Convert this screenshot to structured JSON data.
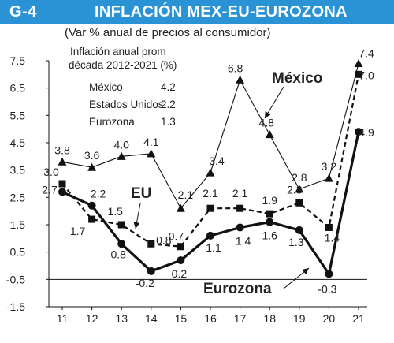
{
  "header": {
    "figure_label": "G-4",
    "title": "INFLACIÓN MEX-EU-EUROZONA"
  },
  "subtitle": "(Var % anual de precios al consumidor)",
  "note": {
    "heading_line1": "Inflación anual prom",
    "heading_line2": "década 2012-2021 (%)",
    "rows": [
      {
        "label": "México",
        "value": "4.2"
      },
      {
        "label": "Estados Unidos",
        "value": "2.2"
      },
      {
        "label": "Eurozona",
        "value": "1.3"
      }
    ]
  },
  "colors": {
    "header_bg": "#2a93d5",
    "header_text": "#ffffff",
    "lines": "#111111"
  },
  "chart_data": {
    "type": "line",
    "x": [
      "11",
      "12",
      "13",
      "14",
      "15",
      "16",
      "17",
      "18",
      "19",
      "20",
      "21"
    ],
    "ylim": [
      -1.5,
      7.5
    ],
    "yticks": [
      "7.5",
      "6.5",
      "5.5",
      "4.5",
      "3.5",
      "2.5",
      "1.5",
      "0.5",
      "-0.5",
      "-1.5"
    ],
    "grid": false,
    "series": [
      {
        "name": "México",
        "marker": "triangle",
        "style": "solid-thin",
        "values": [
          3.8,
          3.6,
          4.0,
          4.1,
          2.1,
          3.4,
          6.8,
          4.8,
          2.8,
          3.2,
          7.4
        ],
        "labels": [
          "3.8",
          "3.6",
          "4.0",
          "4.1",
          "2.1",
          "3.4",
          "6.8",
          "4.8",
          "2.8",
          "3.2",
          "7.4"
        ]
      },
      {
        "name": "EU",
        "marker": "square",
        "style": "dashed",
        "values": [
          3.0,
          1.7,
          1.5,
          0.8,
          0.7,
          2.1,
          2.1,
          1.9,
          2.3,
          1.4,
          7.0
        ],
        "labels": [
          "3.0",
          "1.7",
          "1.5",
          "0.8",
          "0.7",
          "2.1",
          "2.1",
          "1.9",
          "2.3",
          "1.4",
          "7.0"
        ]
      },
      {
        "name": "Eurozona",
        "marker": "circle",
        "style": "solid-thick",
        "values": [
          2.7,
          2.2,
          0.8,
          -0.2,
          0.2,
          1.1,
          1.4,
          1.6,
          1.3,
          -0.3,
          4.9
        ],
        "labels": [
          "2.7",
          "2.2",
          "0.8",
          "-0.2",
          "0.2",
          "1.1",
          "1.4",
          "1.6",
          "1.3",
          "-0.3",
          "4.9"
        ]
      }
    ]
  }
}
